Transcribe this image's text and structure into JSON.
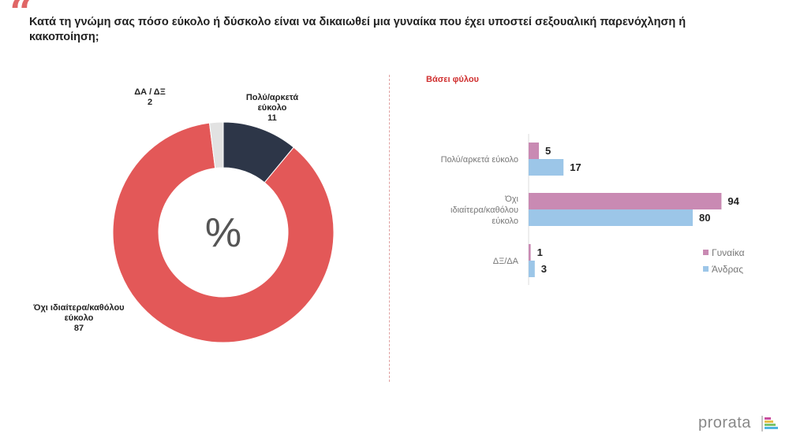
{
  "header": {
    "quote_mark": "“",
    "title": "Κατά τη γνώμη σας πόσο εύκολο ή δύσκολο είναι να δικαιωθεί μια γυναίκα που έχει υποστεί σεξουαλική παρενόχληση ή κακοποίηση;"
  },
  "brand": {
    "name": "prorata"
  },
  "chart_data": [
    {
      "type": "pie",
      "variant": "donut",
      "center_label": "%",
      "slices": [
        {
          "label": "Πολύ/αρκετά εύκολο",
          "value": 11,
          "color": "#2d3648"
        },
        {
          "label": "Όχι ιδιαίτερα/καθόλου εύκολο",
          "value": 87,
          "color": "#e35858"
        },
        {
          "label": "ΔΑ / ΔΞ",
          "value": 2,
          "color": "#e2e2e2"
        }
      ]
    },
    {
      "type": "bar",
      "orientation": "horizontal",
      "title": "Βάσει φύλου",
      "categories": [
        "Πολύ/αρκετά εύκολο",
        "Όχι ιδιαίτερα/καθόλου εύκολο",
        "ΔΞ/ΔΑ"
      ],
      "series": [
        {
          "name": "Γυναίκα",
          "values": [
            5,
            94,
            1
          ],
          "color": "#c98ab3"
        },
        {
          "name": "Άνδρας",
          "values": [
            17,
            80,
            3
          ],
          "color": "#9cc6e8"
        }
      ],
      "xlim": [
        0,
        100
      ],
      "legend": "bottom-right"
    }
  ]
}
